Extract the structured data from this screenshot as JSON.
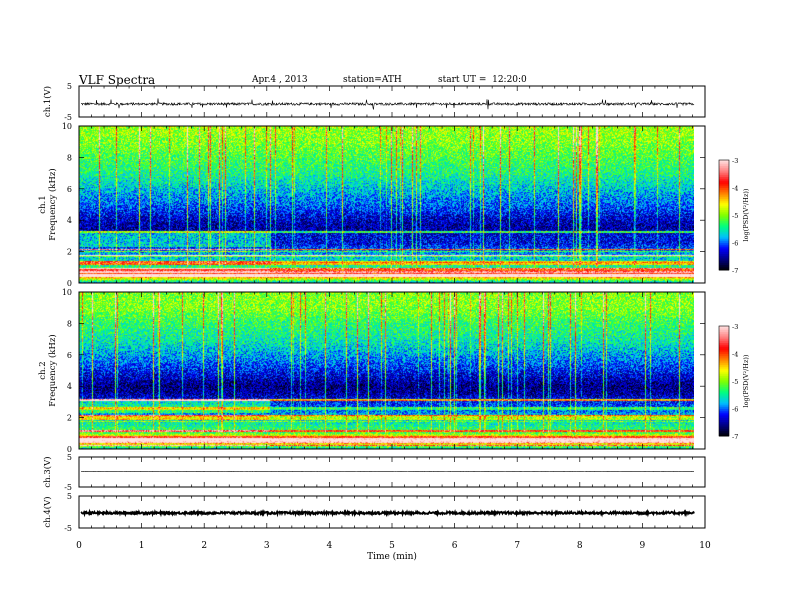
{
  "header": {
    "title": "VLF Spectra",
    "date": "Apr.4 , 2013",
    "station": "station=ATH",
    "start": "start UT =  12:20:0"
  },
  "colorbar": {
    "label": "log(PSD(V²/Hz))",
    "ticks": [
      "-3",
      "-4",
      "-5",
      "-6",
      "-7"
    ],
    "stops": [
      "#000000",
      "#000080",
      "#0000ff",
      "#00bfff",
      "#00ff7f",
      "#7fff00",
      "#ffff00",
      "#ff8000",
      "#ff0000",
      "#ff8080",
      "#ffe0e0"
    ]
  },
  "chart_data": [
    {
      "type": "line",
      "panel": "ch1-waveform",
      "ylabel": "ch.1(V)",
      "ylim": [
        -5,
        5
      ],
      "yticks": [
        "5",
        "-5"
      ],
      "xlim": [
        0,
        10
      ],
      "baseline": -0.8,
      "noise_amplitude": 0.4,
      "spikes_up_to": 1.8
    },
    {
      "type": "heatmap",
      "panel": "ch1-spectrogram",
      "ylabel": "ch.1\nFrequency (kHz)",
      "ylim": [
        0,
        10
      ],
      "yticks": [
        "0",
        "2",
        "4",
        "6",
        "8",
        "10"
      ],
      "xlim": [
        0,
        10
      ],
      "data_end_min": 9.83,
      "color_scale": [
        -7,
        -3
      ],
      "profile_khz": [
        0,
        0.5,
        1,
        2,
        2.5,
        3,
        3.5,
        4,
        5,
        6,
        7,
        8,
        9,
        10
      ],
      "profile_log_psd": [
        -5.7,
        -3.6,
        -5.4,
        -5.9,
        -6.3,
        -6.3,
        -6.5,
        -6.4,
        -6.0,
        -5.7,
        -5.4,
        -5.2,
        -5.0,
        -4.9
      ],
      "band_change_min": 3.05
    },
    {
      "type": "heatmap",
      "panel": "ch2-spectrogram",
      "ylabel": "ch.2\nFrequency (kHz)",
      "ylim": [
        0,
        10
      ],
      "yticks": [
        "0",
        "2",
        "4",
        "6",
        "8",
        "10"
      ],
      "xlim": [
        0,
        10
      ],
      "data_end_min": 9.83,
      "color_scale": [
        -7,
        -3
      ],
      "profile_khz": [
        0,
        0.5,
        1,
        2,
        2.5,
        3,
        3.5,
        4,
        5,
        6,
        7,
        8,
        9,
        10
      ],
      "profile_log_psd": [
        -5.6,
        -3.7,
        -5.2,
        -5.7,
        -6.0,
        -6.2,
        -6.5,
        -6.6,
        -6.2,
        -5.8,
        -5.5,
        -5.3,
        -5.0,
        -5.0
      ],
      "band_change_min": 3.05
    },
    {
      "type": "line",
      "panel": "ch3-waveform",
      "ylabel": "ch.3(V)",
      "ylim": [
        -5,
        5
      ],
      "yticks": [
        "5",
        "-5"
      ],
      "xlim": [
        0,
        10
      ],
      "baseline": 0.2,
      "noise_amplitude": 0.02,
      "spikes_up_to": 0
    },
    {
      "type": "line",
      "panel": "ch4-waveform",
      "ylabel": "ch.4(V)",
      "ylim": [
        -5,
        5
      ],
      "yticks": [
        "5",
        "-5"
      ],
      "xlim": [
        0,
        10
      ],
      "baseline": -0.3,
      "noise_amplitude": 0.35,
      "spikes_up_to": 0
    }
  ],
  "x_axis": {
    "label": "Time (min)",
    "ticks": [
      "0",
      "1",
      "2",
      "3",
      "4",
      "5",
      "6",
      "7",
      "8",
      "9",
      "10"
    ]
  }
}
